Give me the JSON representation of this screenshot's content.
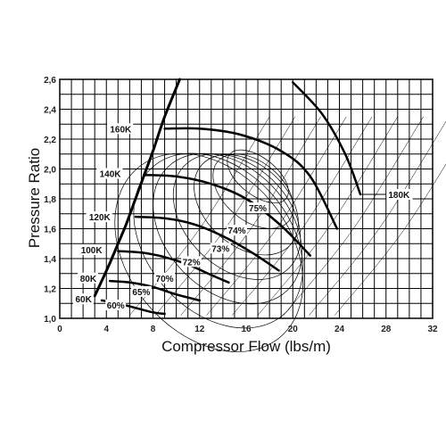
{
  "chart_data": {
    "type": "line",
    "title": "",
    "xlabel": "Compressor Flow (lbs/m)",
    "ylabel": "Pressure Ratio",
    "xlim": [
      0,
      32
    ],
    "ylim": [
      1.0,
      2.6
    ],
    "x_ticks": [
      0,
      4,
      8,
      12,
      16,
      20,
      24,
      28,
      32
    ],
    "y_ticks": [
      1.0,
      1.2,
      1.4,
      1.6,
      1.8,
      2.0,
      2.2,
      2.4,
      2.6
    ],
    "x_tick_labels": [
      "0",
      "4",
      "8",
      "12",
      "16",
      "20",
      "24",
      "28",
      "32"
    ],
    "y_tick_labels": [
      "1,0",
      "1,2",
      "1,4",
      "1,6",
      "1,8",
      "2,0",
      "2,2",
      "2,4",
      "2,6"
    ],
    "grid": true,
    "surge_line": {
      "x": [
        3.0,
        3.6,
        4.3,
        5.0,
        5.7,
        6.5,
        7.2,
        8.0,
        9.0,
        10.3
      ],
      "y": [
        1.15,
        1.25,
        1.37,
        1.5,
        1.63,
        1.8,
        1.95,
        2.12,
        2.35,
        2.6
      ]
    },
    "speed_lines": [
      {
        "name": "60K",
        "x": [
          3.6,
          5.0,
          6.5,
          8.0,
          9.0
        ],
        "y": [
          1.12,
          1.1,
          1.07,
          1.04,
          1.03
        ]
      },
      {
        "name": "80K",
        "x": [
          4.3,
          6.0,
          8.0,
          10.0,
          12.0
        ],
        "y": [
          1.25,
          1.24,
          1.21,
          1.16,
          1.12
        ]
      },
      {
        "name": "100K",
        "x": [
          5.0,
          7.0,
          9.0,
          11.0,
          13.0,
          14.5
        ],
        "y": [
          1.45,
          1.44,
          1.41,
          1.36,
          1.29,
          1.24
        ]
      },
      {
        "name": "120K",
        "x": [
          6.5,
          9.0,
          11.5,
          14.0,
          16.5,
          18.8
        ],
        "y": [
          1.68,
          1.67,
          1.63,
          1.55,
          1.44,
          1.32
        ]
      },
      {
        "name": "140K",
        "x": [
          7.2,
          10.0,
          13.0,
          16.0,
          19.0,
          21.5
        ],
        "y": [
          1.96,
          1.95,
          1.9,
          1.8,
          1.62,
          1.42
        ]
      },
      {
        "name": "160K",
        "x": [
          9.0,
          12.0,
          15.5,
          19.0,
          21.5,
          23.8
        ],
        "y": [
          2.27,
          2.27,
          2.23,
          2.12,
          1.95,
          1.6
        ]
      }
    ],
    "speed_line_180K": {
      "name": "180K",
      "x": [
        20.0,
        22.5,
        24.5,
        25.8
      ],
      "y": [
        2.58,
        2.37,
        2.1,
        1.83
      ]
    },
    "efficiency_contours": [
      {
        "label": "60%",
        "x": 6.0,
        "y": 1.16
      },
      {
        "label": "65%",
        "x": 8.0,
        "y": 1.2
      },
      {
        "label": "70%",
        "x": 9.5,
        "y": 1.28
      },
      {
        "label": "72%",
        "x": 11.0,
        "y": 1.34
      },
      {
        "label": "73%",
        "x": 13.5,
        "y": 1.43
      },
      {
        "label": "74%",
        "x": 15.5,
        "y": 1.55
      },
      {
        "label": "75%",
        "x": 17.0,
        "y": 1.7
      }
    ],
    "annotations": [
      "160K",
      "140K",
      "120K",
      "100K",
      "80K",
      "60K",
      "180K",
      "75%",
      "74%",
      "73%",
      "72%",
      "70%",
      "65%",
      "60%"
    ]
  }
}
